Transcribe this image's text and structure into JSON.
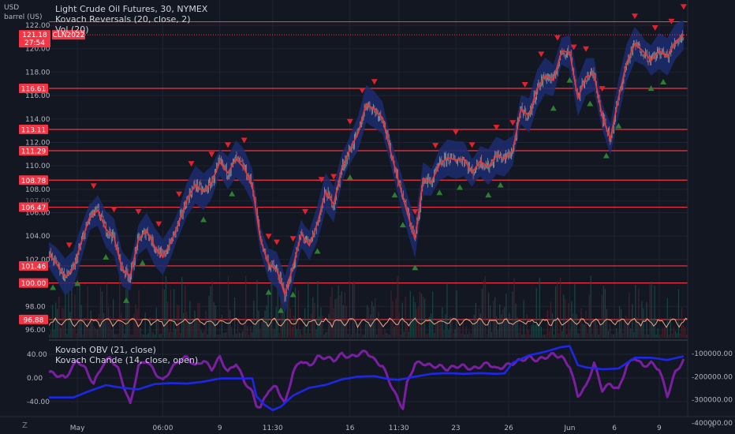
{
  "units": {
    "currency": "USD",
    "measure": "barrel (US)"
  },
  "legend_main": {
    "title": "Light Crude Oil Futures, 30, NYMEX",
    "line2": "Kovach Reversals (20, close, 2)",
    "line3": "Vol (20)"
  },
  "legend_lower": {
    "line1": "Kovach OBV (21, close)",
    "line2": "Kovach Chande (14, close, open)"
  },
  "corner": {
    "left": "Z",
    "right": "A"
  },
  "chart_data": [
    {
      "type": "line",
      "title": "Light Crude Oil Futures, 30, NYMEX",
      "price_scale": {
        "min": 96,
        "max": 122,
        "ticks": [
          96.0,
          98.0,
          102.0,
          104.0,
          106.0,
          108.0,
          110.0,
          112.0,
          114.0,
          116.0,
          118.0,
          120.0,
          122.0
        ],
        "faint_tick": 107.0
      },
      "x_labels": [
        "May",
        "06:00",
        "9",
        "11:30",
        "16",
        "11:30",
        "23",
        "26",
        "Jun",
        "6",
        "9"
      ],
      "last_price": {
        "value": 121.18,
        "countdown": "27:54",
        "symbol": "CLN2022",
        "color": "#f23645"
      },
      "horizontal_levels": [
        {
          "value": 122.3,
          "label": ""
        },
        {
          "value": 116.61,
          "label": "116.61"
        },
        {
          "value": 113.11,
          "label": "113.11"
        },
        {
          "value": 111.29,
          "label": "111.29"
        },
        {
          "value": 108.78,
          "label": "108.78"
        },
        {
          "value": 106.47,
          "label": "106.47"
        },
        {
          "value": 101.46,
          "label": "101.46"
        },
        {
          "value": 100.0,
          "label": "100.00"
        },
        {
          "value": 96.88,
          "label": "96.88"
        }
      ],
      "price_series": [
        [
          0,
          102.4
        ],
        [
          2,
          101.6
        ],
        [
          4,
          100.5
        ],
        [
          6,
          101.2
        ],
        [
          8,
          103.5
        ],
        [
          10,
          105.6
        ],
        [
          12,
          106.2
        ],
        [
          14,
          104.6
        ],
        [
          16,
          103.9
        ],
        [
          18,
          101.2
        ],
        [
          20,
          100.6
        ],
        [
          22,
          103.7
        ],
        [
          24,
          104.5
        ],
        [
          26,
          103.1
        ],
        [
          28,
          102.2
        ],
        [
          30,
          103.5
        ],
        [
          32,
          105.2
        ],
        [
          34,
          107.2
        ],
        [
          36,
          108.4
        ],
        [
          38,
          107.8
        ],
        [
          40,
          108.6
        ],
        [
          42,
          110.3
        ],
        [
          44,
          109.4
        ],
        [
          46,
          110.6
        ],
        [
          48,
          109.8
        ],
        [
          50,
          108.3
        ],
        [
          52,
          103.7
        ],
        [
          54,
          101.6
        ],
        [
          56,
          101.1
        ],
        [
          58,
          99.0
        ],
        [
          60,
          101.4
        ],
        [
          62,
          104.2
        ],
        [
          64,
          103.2
        ],
        [
          66,
          105.1
        ],
        [
          68,
          107.8
        ],
        [
          70,
          106.7
        ],
        [
          72,
          109.8
        ],
        [
          74,
          111.4
        ],
        [
          76,
          112.8
        ],
        [
          78,
          115.3
        ],
        [
          80,
          114.8
        ],
        [
          82,
          114.1
        ],
        [
          84,
          111.2
        ],
        [
          86,
          108.6
        ],
        [
          88,
          106.1
        ],
        [
          90,
          103.7
        ],
        [
          92,
          108.9
        ],
        [
          94,
          108.6
        ],
        [
          96,
          110.1
        ],
        [
          98,
          110.7
        ],
        [
          100,
          110.5
        ],
        [
          102,
          110.6
        ],
        [
          104,
          109.4
        ],
        [
          106,
          110.4
        ],
        [
          108,
          109.9
        ],
        [
          110,
          110.9
        ],
        [
          112,
          110.6
        ],
        [
          114,
          111.3
        ],
        [
          116,
          114.8
        ],
        [
          118,
          114.3
        ],
        [
          120,
          116.6
        ],
        [
          122,
          117.7
        ],
        [
          124,
          117.3
        ],
        [
          126,
          119.8
        ],
        [
          128,
          119.7
        ],
        [
          130,
          115.8
        ],
        [
          132,
          117.6
        ],
        [
          134,
          117.8
        ],
        [
          136,
          114.2
        ],
        [
          138,
          112.3
        ],
        [
          140,
          115.8
        ],
        [
          142,
          118.8
        ],
        [
          144,
          120.4
        ],
        [
          146,
          119.8
        ],
        [
          148,
          119.0
        ],
        [
          150,
          119.8
        ],
        [
          152,
          119.3
        ],
        [
          154,
          120.6
        ],
        [
          156,
          121.2
        ]
      ],
      "reversal_markers": {
        "up_color": "#2e7d32",
        "down_color": "#e0212e",
        "up_x": [
          1,
          7,
          14,
          19,
          23,
          38,
          45,
          54,
          57,
          60,
          66,
          74,
          85,
          87,
          90,
          96,
          101,
          108,
          111,
          124,
          128,
          133,
          137,
          140,
          148,
          151
        ],
        "down_x": [
          5,
          11,
          16,
          22,
          27,
          32,
          35,
          40,
          44,
          48,
          54,
          56,
          60,
          63,
          67,
          70,
          74,
          77,
          80,
          90,
          95,
          100,
          104,
          110,
          114,
          117,
          121,
          125,
          129,
          132,
          136,
          144,
          149,
          153,
          156
        ]
      },
      "series": [
        {
          "name": "Kovach Reversals",
          "color": "#e53935"
        }
      ]
    },
    {
      "type": "line",
      "series": [
        {
          "name": "Kovach Chande",
          "color": "#7b1fa2",
          "values": [
            [
              0,
              10
            ],
            [
              4,
              0
            ],
            [
              7,
              30
            ],
            [
              9,
              15
            ],
            [
              11,
              -10
            ],
            [
              13,
              20
            ],
            [
              15,
              35
            ],
            [
              17,
              15
            ],
            [
              19,
              -25
            ],
            [
              20,
              -45
            ],
            [
              22,
              20
            ],
            [
              24,
              30
            ],
            [
              26,
              10
            ],
            [
              28,
              -5
            ],
            [
              30,
              15
            ],
            [
              32,
              30
            ],
            [
              34,
              35
            ],
            [
              36,
              20
            ],
            [
              38,
              30
            ],
            [
              40,
              15
            ],
            [
              42,
              35
            ],
            [
              44,
              10
            ],
            [
              46,
              25
            ],
            [
              48,
              -5
            ],
            [
              50,
              -25
            ],
            [
              51,
              -45
            ],
            [
              52,
              -50
            ],
            [
              54,
              -20
            ],
            [
              56,
              -15
            ],
            [
              58,
              -45
            ],
            [
              60,
              10
            ],
            [
              62,
              30
            ],
            [
              64,
              20
            ],
            [
              66,
              35
            ],
            [
              68,
              35
            ],
            [
              70,
              30
            ],
            [
              72,
              40
            ],
            [
              74,
              35
            ],
            [
              76,
              40
            ],
            [
              78,
              45
            ],
            [
              80,
              30
            ],
            [
              82,
              20
            ],
            [
              84,
              -10
            ],
            [
              86,
              -40
            ],
            [
              87,
              -50
            ],
            [
              88,
              -10
            ],
            [
              90,
              25
            ],
            [
              92,
              25
            ],
            [
              94,
              20
            ],
            [
              96,
              20
            ],
            [
              98,
              15
            ],
            [
              100,
              20
            ],
            [
              102,
              20
            ],
            [
              104,
              15
            ],
            [
              106,
              20
            ],
            [
              108,
              25
            ],
            [
              110,
              15
            ],
            [
              112,
              20
            ],
            [
              114,
              25
            ],
            [
              116,
              30
            ],
            [
              118,
              35
            ],
            [
              120,
              30
            ],
            [
              122,
              35
            ],
            [
              124,
              40
            ],
            [
              126,
              35
            ],
            [
              128,
              20
            ],
            [
              130,
              -30
            ],
            [
              132,
              -15
            ],
            [
              134,
              25
            ],
            [
              136,
              -20
            ],
            [
              138,
              -10
            ],
            [
              140,
              -20
            ],
            [
              142,
              20
            ],
            [
              144,
              35
            ],
            [
              146,
              20
            ],
            [
              148,
              25
            ],
            [
              150,
              15
            ],
            [
              152,
              -30
            ],
            [
              154,
              10
            ],
            [
              156,
              30
            ]
          ]
        },
        {
          "name": "Kovach OBV",
          "color": "#1e27e6",
          "values": [
            [
              0,
              -290000
            ],
            [
              6,
              -290000
            ],
            [
              10,
              -262000
            ],
            [
              14,
              -237000
            ],
            [
              18,
              -248000
            ],
            [
              22,
              -255000
            ],
            [
              26,
              -232000
            ],
            [
              30,
              -228000
            ],
            [
              34,
              -230000
            ],
            [
              38,
              -222000
            ],
            [
              42,
              -208000
            ],
            [
              46,
              -208000
            ],
            [
              50,
              -208000
            ],
            [
              51,
              -285000
            ],
            [
              53,
              -322000
            ],
            [
              55,
              -345000
            ],
            [
              57,
              -330000
            ],
            [
              60,
              -282000
            ],
            [
              64,
              -248000
            ],
            [
              68,
              -236000
            ],
            [
              72,
              -212000
            ],
            [
              76,
              -200000
            ],
            [
              80,
              -198000
            ],
            [
              84,
              -212000
            ],
            [
              86,
              -214000
            ],
            [
              90,
              -200000
            ],
            [
              94,
              -188000
            ],
            [
              98,
              -185000
            ],
            [
              102,
              -188000
            ],
            [
              106,
              -185000
            ],
            [
              110,
              -188000
            ],
            [
              112,
              -186000
            ],
            [
              114,
              -140000
            ],
            [
              118,
              -108000
            ],
            [
              122,
              -92000
            ],
            [
              126,
              -72000
            ],
            [
              128,
              -68000
            ],
            [
              130,
              -150000
            ],
            [
              132,
              -160000
            ],
            [
              136,
              -168000
            ],
            [
              140,
              -165000
            ],
            [
              144,
              -118000
            ],
            [
              148,
              -118000
            ],
            [
              152,
              -128000
            ],
            [
              156,
              -112000
            ]
          ]
        }
      ],
      "left_axis": {
        "min": -60,
        "max": 60,
        "ticks": [
          40.0,
          0.0,
          -40.0
        ]
      },
      "right_axis": {
        "min": -400000,
        "max": -70000,
        "ticks": [
          -100000.0,
          -200000.0,
          -300000.0,
          -400000.0
        ]
      }
    }
  ]
}
